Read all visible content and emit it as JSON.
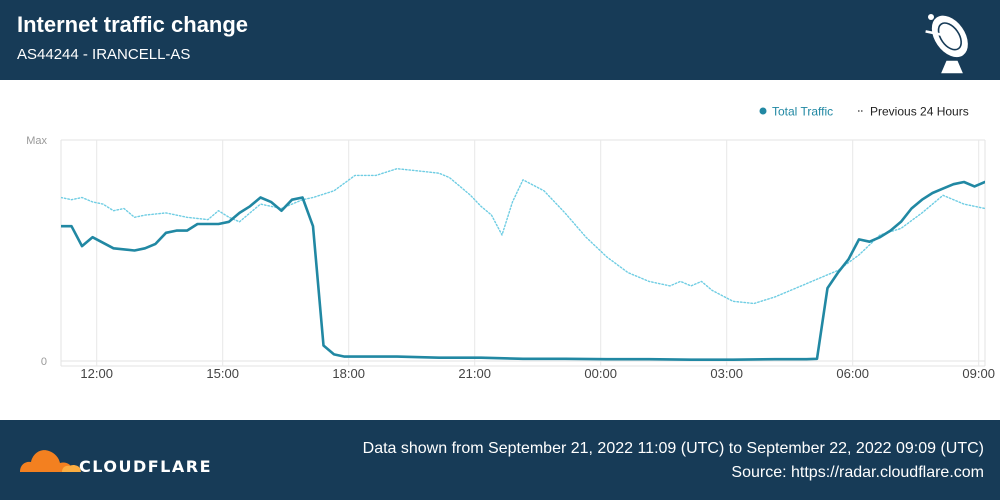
{
  "header": {
    "title": "Internet traffic change",
    "subtitle": "AS44244 - IRANCELL-AS",
    "icon": "radar-dish-icon"
  },
  "footer": {
    "brand": "CLOUDFLARE",
    "range_text": "Data shown from September 21, 2022 11:09 (UTC) to September 22, 2022 09:09 (UTC)",
    "source_text": "Source: https://radar.cloudflare.com",
    "brand_colors": {
      "cloud_dark": "#f38020",
      "cloud_light": "#fbad41"
    }
  },
  "chart_data": {
    "type": "line",
    "x_unit": "hours after 11:09 UTC, September 21, 2022",
    "x_range": [
      0,
      22
    ],
    "y_range": [
      0,
      100
    ],
    "y_ticks": [
      {
        "value": 0,
        "label": "0"
      },
      {
        "value": 100,
        "label": "Max"
      }
    ],
    "x_ticks": [
      {
        "value": 0.85,
        "label": "12:00"
      },
      {
        "value": 3.85,
        "label": "15:00"
      },
      {
        "value": 6.85,
        "label": "18:00"
      },
      {
        "value": 9.85,
        "label": "21:00"
      },
      {
        "value": 12.85,
        "label": "00:00"
      },
      {
        "value": 15.85,
        "label": "03:00"
      },
      {
        "value": 18.85,
        "label": "06:00"
      },
      {
        "value": 21.85,
        "label": "09:00"
      }
    ],
    "grid": true,
    "legend_position": "top-right",
    "series": [
      {
        "name": "Total Traffic",
        "color": "#2188a3",
        "style": "solid",
        "points": [
          [
            0,
            61
          ],
          [
            0.25,
            61
          ],
          [
            0.5,
            52
          ],
          [
            0.75,
            56
          ],
          [
            1.25,
            51
          ],
          [
            1.75,
            50
          ],
          [
            2,
            51
          ],
          [
            2.25,
            53
          ],
          [
            2.5,
            58
          ],
          [
            2.75,
            59
          ],
          [
            3,
            59
          ],
          [
            3.25,
            62
          ],
          [
            3.5,
            62
          ],
          [
            3.75,
            62
          ],
          [
            4,
            63
          ],
          [
            4.25,
            67
          ],
          [
            4.5,
            70
          ],
          [
            4.75,
            74
          ],
          [
            5,
            72
          ],
          [
            5.25,
            68
          ],
          [
            5.5,
            73
          ],
          [
            5.75,
            74
          ],
          [
            6,
            61
          ],
          [
            6.25,
            7
          ],
          [
            6.5,
            3
          ],
          [
            6.75,
            2
          ],
          [
            7.5,
            2
          ],
          [
            8,
            2
          ],
          [
            9,
            1.5
          ],
          [
            10,
            1.5
          ],
          [
            11,
            1
          ],
          [
            12,
            1
          ],
          [
            13,
            0.8
          ],
          [
            14,
            0.8
          ],
          [
            15,
            0.6
          ],
          [
            16,
            0.6
          ],
          [
            17,
            0.8
          ],
          [
            17.75,
            0.8
          ],
          [
            18,
            1
          ],
          [
            18.25,
            33
          ],
          [
            18.5,
            40
          ],
          [
            18.75,
            46
          ],
          [
            19,
            55
          ],
          [
            19.25,
            54
          ],
          [
            19.5,
            56
          ],
          [
            19.75,
            59
          ],
          [
            20,
            63
          ],
          [
            20.25,
            69
          ],
          [
            20.5,
            73
          ],
          [
            20.75,
            76
          ],
          [
            21,
            78
          ],
          [
            21.25,
            80
          ],
          [
            21.5,
            81
          ],
          [
            21.75,
            79
          ],
          [
            22,
            81
          ],
          [
            22.25,
            82
          ],
          [
            22.5,
            99
          ],
          [
            22.75,
            99
          ]
        ]
      },
      {
        "name": "Previous 24 Hours",
        "color": "#6fcde3",
        "style": "dotted",
        "points": [
          [
            0,
            74
          ],
          [
            0.25,
            73
          ],
          [
            0.5,
            74
          ],
          [
            0.75,
            72
          ],
          [
            1,
            71
          ],
          [
            1.25,
            68
          ],
          [
            1.5,
            69
          ],
          [
            1.75,
            65
          ],
          [
            2,
            66
          ],
          [
            2.5,
            67
          ],
          [
            3,
            65
          ],
          [
            3.5,
            64
          ],
          [
            3.75,
            68
          ],
          [
            4,
            65
          ],
          [
            4.25,
            63
          ],
          [
            4.5,
            67
          ],
          [
            4.75,
            71
          ],
          [
            5,
            70
          ],
          [
            5.25,
            69
          ],
          [
            5.5,
            71
          ],
          [
            5.75,
            73
          ],
          [
            6,
            74
          ],
          [
            6.5,
            77
          ],
          [
            7,
            84
          ],
          [
            7.5,
            84
          ],
          [
            8,
            87
          ],
          [
            8.5,
            86
          ],
          [
            9,
            85
          ],
          [
            9.25,
            83
          ],
          [
            9.5,
            79
          ],
          [
            9.75,
            75
          ],
          [
            10,
            70
          ],
          [
            10.25,
            66
          ],
          [
            10.5,
            57
          ],
          [
            10.75,
            72
          ],
          [
            11,
            82
          ],
          [
            11.5,
            77
          ],
          [
            12,
            67
          ],
          [
            12.5,
            56
          ],
          [
            13,
            47
          ],
          [
            13.5,
            40
          ],
          [
            14,
            36
          ],
          [
            14.5,
            34
          ],
          [
            14.75,
            36
          ],
          [
            15,
            34
          ],
          [
            15.25,
            36
          ],
          [
            15.5,
            32
          ],
          [
            16,
            27
          ],
          [
            16.5,
            26
          ],
          [
            17,
            29
          ],
          [
            17.5,
            33
          ],
          [
            18,
            37
          ],
          [
            18.5,
            41
          ],
          [
            19,
            48
          ],
          [
            19.5,
            57
          ],
          [
            20,
            60
          ],
          [
            20.5,
            67
          ],
          [
            21,
            75
          ],
          [
            21.5,
            71
          ],
          [
            22,
            69
          ],
          [
            22.5,
            72
          ],
          [
            22.75,
            74
          ],
          [
            23,
            72
          ]
        ]
      }
    ]
  }
}
